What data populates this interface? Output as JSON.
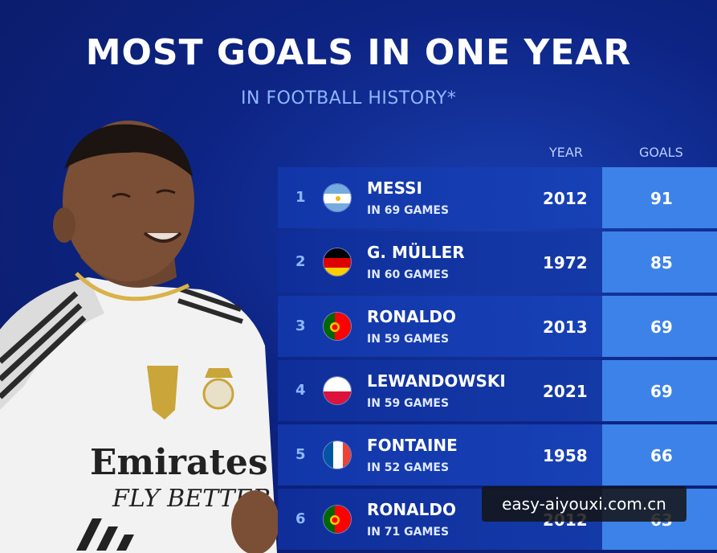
{
  "header": {
    "title": "MOST GOALS IN ONE YEAR",
    "subtitle": "IN FOOTBALL HISTORY*"
  },
  "columns": {
    "year": "YEAR",
    "goals": "GOALS"
  },
  "rows": [
    {
      "rank": "1",
      "name": "MESSI",
      "games": "IN 69 GAMES",
      "year": "2012",
      "goals": "91",
      "flag": "argentina-flag-icon"
    },
    {
      "rank": "2",
      "name": "G. MÜLLER",
      "games": "IN 60 GAMES",
      "year": "1972",
      "goals": "85",
      "flag": "germany-flag-icon"
    },
    {
      "rank": "3",
      "name": "RONALDO",
      "games": "IN 59 GAMES",
      "year": "2013",
      "goals": "69",
      "flag": "portugal-flag-icon"
    },
    {
      "rank": "4",
      "name": "LEWANDOWSKI",
      "games": "IN 59 GAMES",
      "year": "2021",
      "goals": "69",
      "flag": "poland-flag-icon"
    },
    {
      "rank": "5",
      "name": "FONTAINE",
      "games": "IN 52 GAMES",
      "year": "1958",
      "goals": "66",
      "flag": "france-flag-icon"
    },
    {
      "rank": "6",
      "name": "RONALDO",
      "games": "IN 71 GAMES",
      "year": "2012",
      "goals": "63",
      "flag": "portugal-flag-icon"
    }
  ],
  "player": {
    "shirt_sponsor_line1": "Emirates",
    "shirt_sponsor_line2": "FLY BETTER"
  },
  "watermark": {
    "text": "easy-aiyouxi.com.cn"
  },
  "colors": {
    "background": "#0d2484",
    "row_main": "#1236a8",
    "goals_column": "#3d82e8",
    "subtitle": "#8fb6ff"
  }
}
